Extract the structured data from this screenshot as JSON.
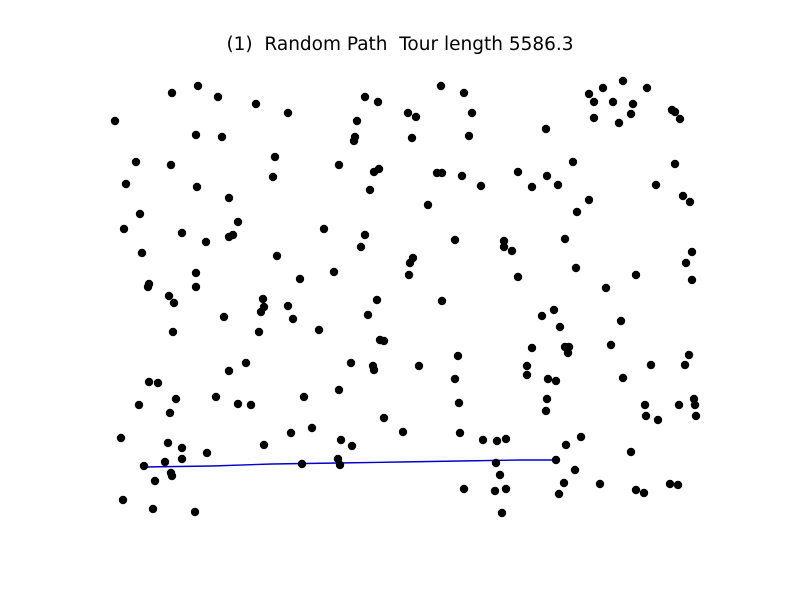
{
  "chart_data": {
    "type": "scatter",
    "title": "(1)  Random Path  Tour length 5586.3",
    "grid": false,
    "axes_visible": false,
    "point_color": "#000000",
    "path_color": "#0000cc",
    "xlim": [
      112,
      699
    ],
    "ylim": [
      82,
      515
    ],
    "points": [
      [
        115,
        121
      ],
      [
        172,
        93
      ],
      [
        198,
        86
      ],
      [
        218,
        97
      ],
      [
        256,
        104
      ],
      [
        288,
        113
      ],
      [
        196,
        135
      ],
      [
        222,
        137
      ],
      [
        136,
        162
      ],
      [
        171,
        165
      ],
      [
        126,
        184
      ],
      [
        197,
        187
      ],
      [
        140,
        214
      ],
      [
        124,
        229
      ],
      [
        182,
        233
      ],
      [
        206,
        242
      ],
      [
        142,
        253
      ],
      [
        149,
        284
      ],
      [
        148,
        287
      ],
      [
        169,
        296
      ],
      [
        174,
        303
      ],
      [
        173,
        332
      ],
      [
        196,
        273
      ],
      [
        196,
        287
      ],
      [
        229,
        198
      ],
      [
        238,
        222
      ],
      [
        229,
        237
      ],
      [
        233,
        235
      ],
      [
        275,
        157
      ],
      [
        273,
        177
      ],
      [
        277,
        256
      ],
      [
        300,
        279
      ],
      [
        224,
        317
      ],
      [
        263,
        299
      ],
      [
        264,
        307
      ],
      [
        261,
        312
      ],
      [
        288,
        306
      ],
      [
        293,
        319
      ],
      [
        259,
        332
      ],
      [
        319,
        330
      ],
      [
        229,
        371
      ],
      [
        246,
        363
      ],
      [
        149,
        382
      ],
      [
        158,
        383
      ],
      [
        176,
        399
      ],
      [
        139,
        405
      ],
      [
        170,
        413
      ],
      [
        216,
        397
      ],
      [
        238,
        404
      ],
      [
        251,
        405
      ],
      [
        304,
        397
      ],
      [
        121,
        438
      ],
      [
        168,
        443
      ],
      [
        182,
        448
      ],
      [
        182,
        459
      ],
      [
        165,
        462
      ],
      [
        144,
        466
      ],
      [
        171,
        473
      ],
      [
        172,
        476
      ],
      [
        207,
        453
      ],
      [
        264,
        445
      ],
      [
        291,
        433
      ],
      [
        312,
        428
      ],
      [
        302,
        464
      ],
      [
        155,
        481
      ],
      [
        123,
        500
      ],
      [
        153,
        509
      ],
      [
        195,
        512
      ],
      [
        340,
        465
      ],
      [
        338,
        459
      ],
      [
        341,
        440
      ],
      [
        352,
        446
      ],
      [
        339,
        390
      ],
      [
        351,
        363
      ],
      [
        373,
        366
      ],
      [
        374,
        370
      ],
      [
        384,
        418
      ],
      [
        403,
        432
      ],
      [
        419,
        366
      ],
      [
        365,
        97
      ],
      [
        378,
        102
      ],
      [
        357,
        121
      ],
      [
        355,
        137
      ],
      [
        354,
        141
      ],
      [
        339,
        165
      ],
      [
        374,
        172
      ],
      [
        379,
        169
      ],
      [
        370,
        190
      ],
      [
        324,
        229
      ],
      [
        365,
        235
      ],
      [
        361,
        247
      ],
      [
        334,
        272
      ],
      [
        377,
        300
      ],
      [
        368,
        315
      ],
      [
        380,
        340
      ],
      [
        384,
        341
      ],
      [
        408,
        113
      ],
      [
        416,
        117
      ],
      [
        412,
        138
      ],
      [
        441,
        86
      ],
      [
        464,
        93
      ],
      [
        472,
        113
      ],
      [
        469,
        136
      ],
      [
        437,
        173
      ],
      [
        442,
        173
      ],
      [
        462,
        176
      ],
      [
        481,
        186
      ],
      [
        428,
        205
      ],
      [
        455,
        240
      ],
      [
        413,
        258
      ],
      [
        410,
        263
      ],
      [
        409,
        275
      ],
      [
        442,
        301
      ],
      [
        458,
        356
      ],
      [
        455,
        379
      ],
      [
        459,
        403
      ],
      [
        460,
        433
      ],
      [
        483,
        440
      ],
      [
        497,
        441
      ],
      [
        506,
        439
      ],
      [
        496,
        463
      ],
      [
        500,
        475
      ],
      [
        464,
        489
      ],
      [
        495,
        491
      ],
      [
        506,
        489
      ],
      [
        502,
        513
      ],
      [
        546,
        129
      ],
      [
        518,
        172
      ],
      [
        532,
        187
      ],
      [
        547,
        176
      ],
      [
        558,
        185
      ],
      [
        573,
        162
      ],
      [
        589,
        200
      ],
      [
        577,
        212
      ],
      [
        565,
        239
      ],
      [
        576,
        268
      ],
      [
        504,
        241
      ],
      [
        504,
        247
      ],
      [
        512,
        251
      ],
      [
        518,
        277
      ],
      [
        542,
        316
      ],
      [
        554,
        310
      ],
      [
        560,
        327
      ],
      [
        532,
        348
      ],
      [
        527,
        366
      ],
      [
        527,
        375
      ],
      [
        548,
        379
      ],
      [
        556,
        381
      ],
      [
        547,
        399
      ],
      [
        546,
        411
      ],
      [
        565,
        347
      ],
      [
        568,
        353
      ],
      [
        569,
        347
      ],
      [
        566,
        445
      ],
      [
        581,
        437
      ],
      [
        556,
        460
      ],
      [
        575,
        470
      ],
      [
        564,
        483
      ],
      [
        559,
        494
      ],
      [
        589,
        94
      ],
      [
        594,
        102
      ],
      [
        603,
        88
      ],
      [
        613,
        102
      ],
      [
        623,
        81
      ],
      [
        633,
        104
      ],
      [
        647,
        88
      ],
      [
        631,
        114
      ],
      [
        619,
        123
      ],
      [
        594,
        118
      ],
      [
        672,
        110
      ],
      [
        675,
        112
      ],
      [
        680,
        119
      ],
      [
        675,
        164
      ],
      [
        656,
        185
      ],
      [
        683,
        196
      ],
      [
        690,
        202
      ],
      [
        606,
        288
      ],
      [
        636,
        275
      ],
      [
        692,
        252
      ],
      [
        686,
        263
      ],
      [
        692,
        280
      ],
      [
        621,
        321
      ],
      [
        611,
        345
      ],
      [
        623,
        378
      ],
      [
        651,
        365
      ],
      [
        685,
        365
      ],
      [
        689,
        355
      ],
      [
        645,
        405
      ],
      [
        646,
        416
      ],
      [
        658,
        420
      ],
      [
        679,
        405
      ],
      [
        694,
        399
      ],
      [
        696,
        416
      ],
      [
        695,
        405
      ],
      [
        631,
        452
      ],
      [
        600,
        484
      ],
      [
        636,
        490
      ],
      [
        644,
        493
      ],
      [
        670,
        484
      ],
      [
        678,
        485
      ]
    ],
    "path": [
      [
        144,
        467
      ],
      [
        212,
        466
      ],
      [
        272,
        464
      ],
      [
        338,
        463
      ],
      [
        400,
        462
      ],
      [
        460,
        461
      ],
      [
        520,
        460
      ],
      [
        556,
        460
      ]
    ]
  }
}
